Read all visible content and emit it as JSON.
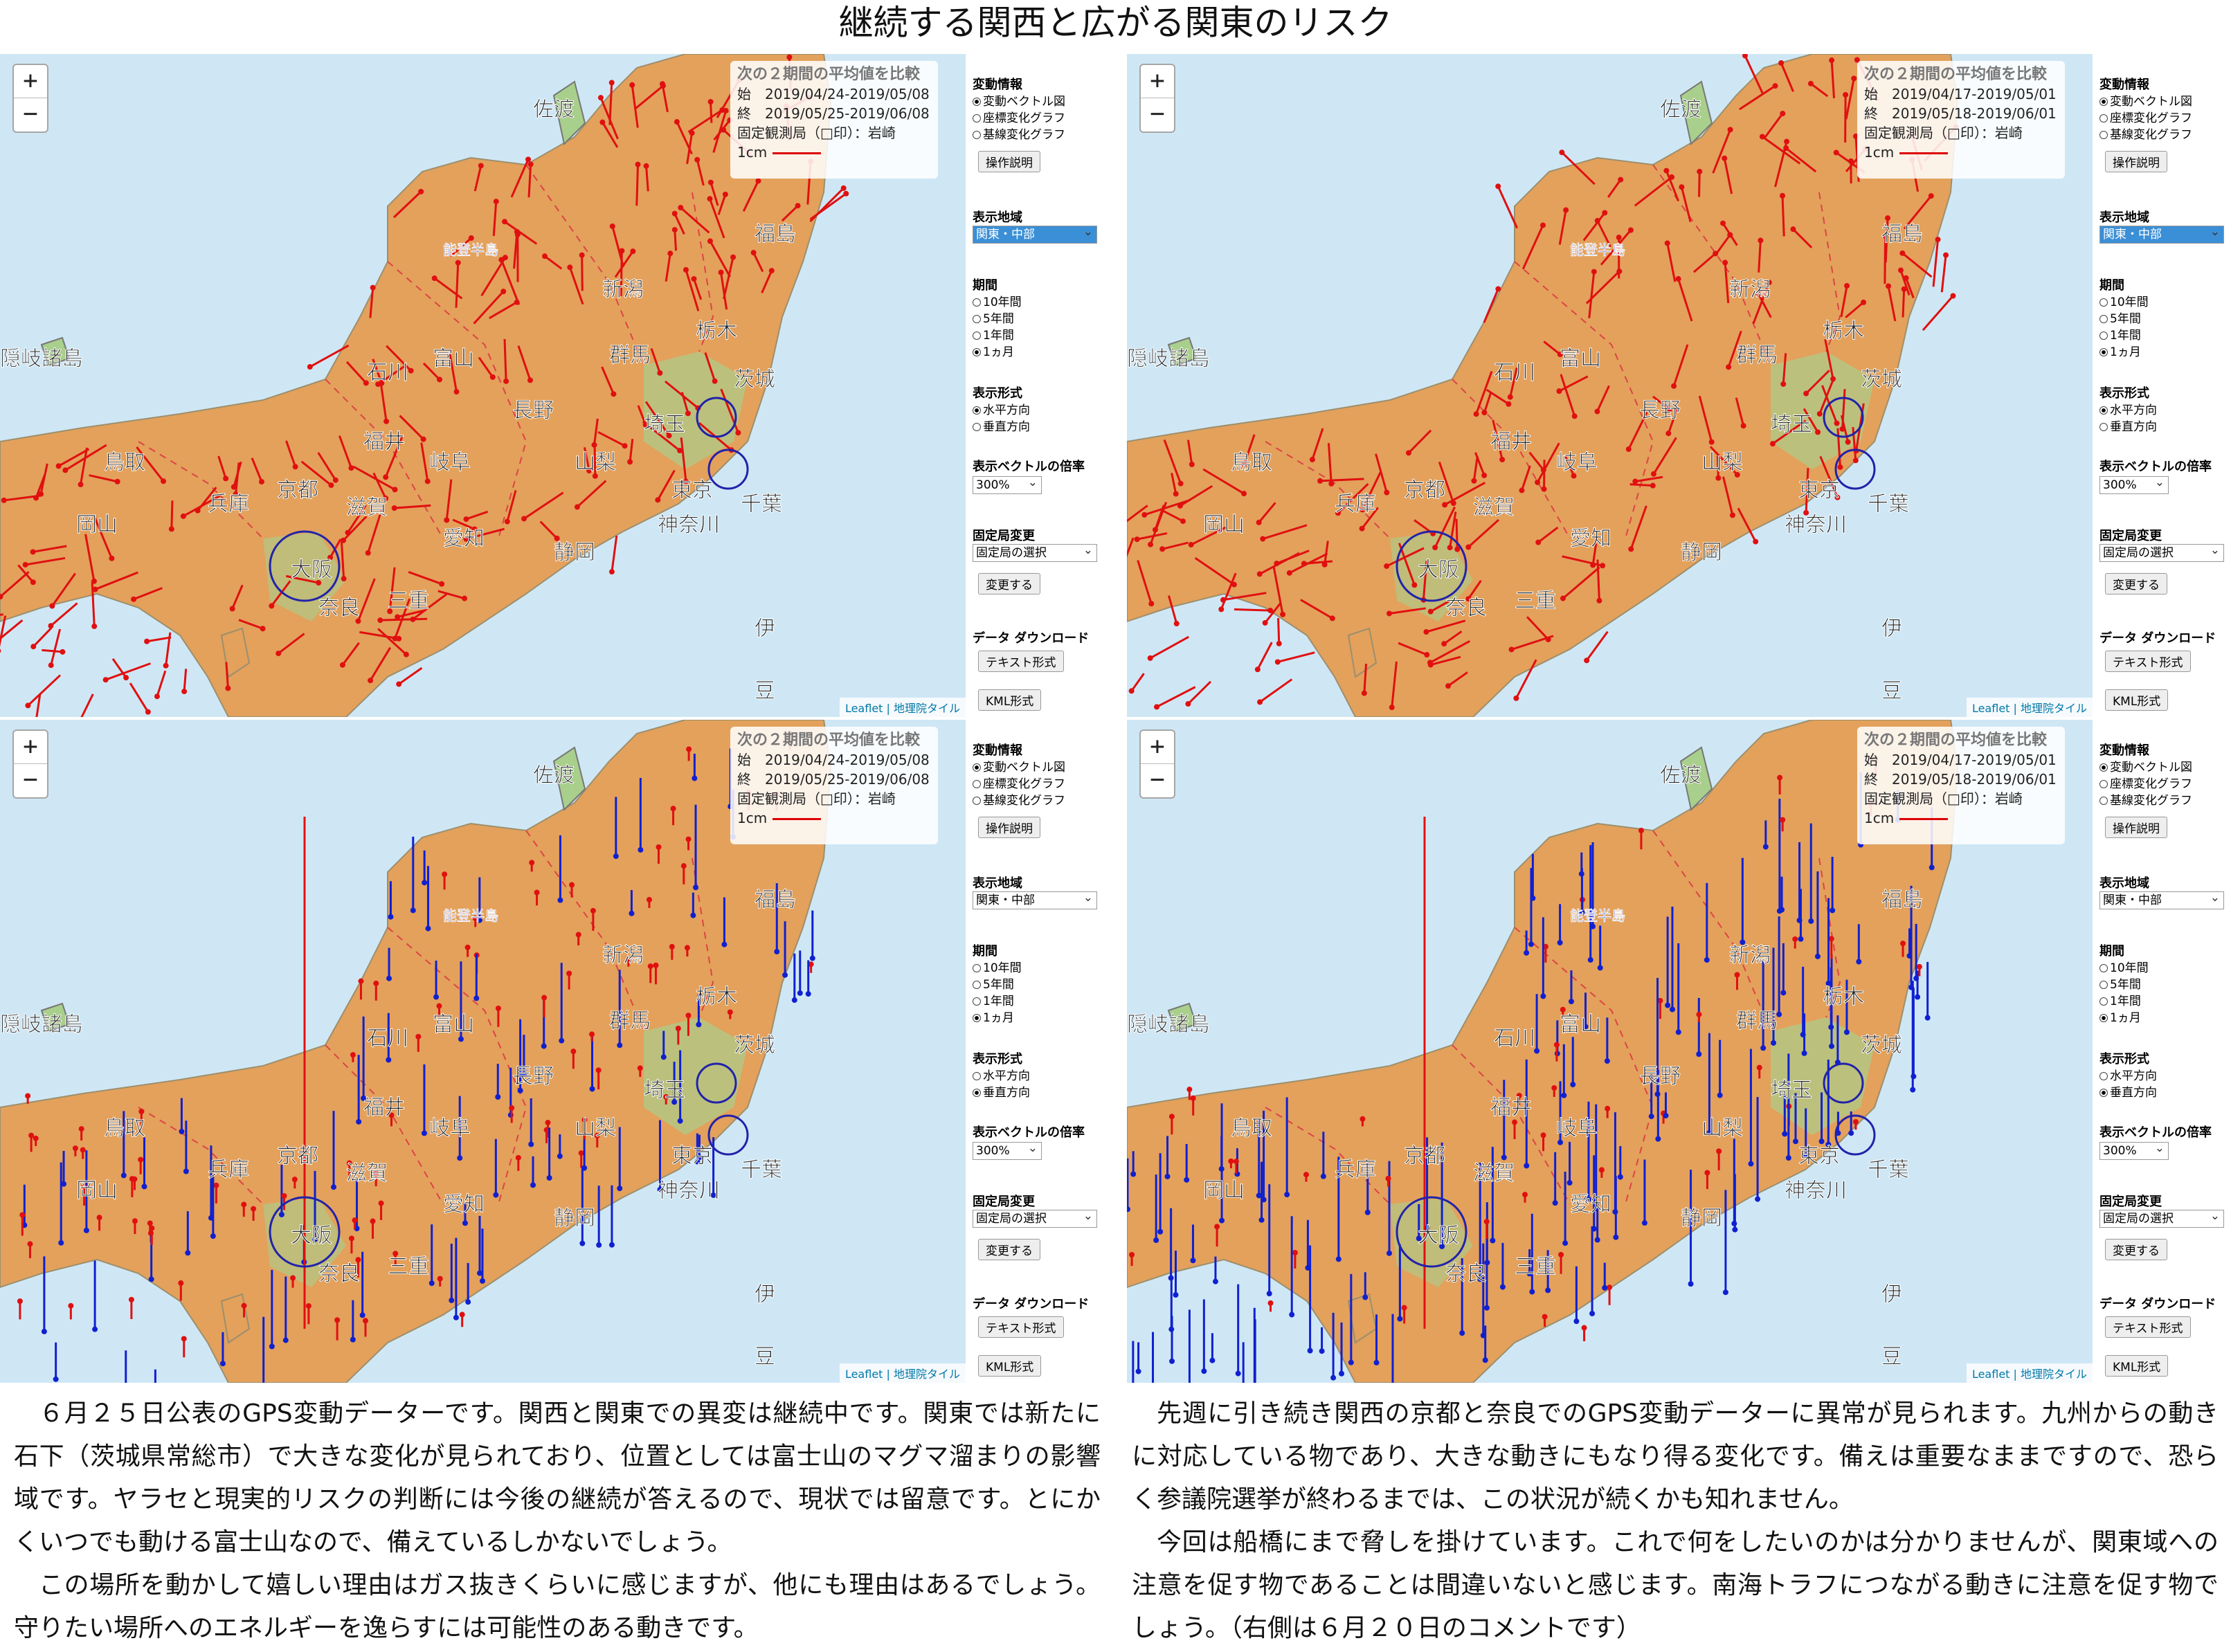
{
  "title": "継続する関西と広がる関東のリスク",
  "zoom": {
    "plus": "+",
    "minus": "−"
  },
  "attribution": "Leaflet | 地理院タイル",
  "sidebar": {
    "change_info": "変動情報",
    "opt_vector": "変動ベクトル図",
    "opt_coord": "座標変化グラフ",
    "opt_baseline": "基線変化グラフ",
    "howto_button": "操作説明",
    "region_label": "表示地域",
    "region_value": "関東・中部",
    "period_label": "期間",
    "period_10y": "10年間",
    "period_5y": "5年間",
    "period_1y": "1年間",
    "period_1m": "1ヵ月",
    "format_label": "表示形式",
    "format_h": "水平方向",
    "format_v": "垂直方向",
    "scale_label": "表示ベクトルの倍率",
    "scale_value": "300%",
    "fixed_label": "固定局変更",
    "fixed_value": "固定局の選択",
    "change_button": "変更する",
    "download_label": "データ ダウンロード",
    "text_button": "テキスト形式",
    "kml_button": "KML形式"
  },
  "info_header": "次の２期間の平均値を比較",
  "info_start_label": "始",
  "info_end_label": "終",
  "info_fixed": "固定観測局（□印）：岩崎",
  "info_scale": "1cm",
  "panels": {
    "tl": {
      "start": "2019/04/24-2019/05/08",
      "end": "2019/05/25-2019/06/08",
      "mode": "h"
    },
    "tr": {
      "start": "2019/04/17-2019/05/01",
      "end": "2019/05/18-2019/06/01",
      "mode": "h"
    },
    "bl": {
      "start": "2019/04/24-2019/05/08",
      "end": "2019/05/25-2019/06/08",
      "mode": "v"
    },
    "br": {
      "start": "2019/04/17-2019/05/01",
      "end": "2019/05/18-2019/06/01",
      "mode": "v"
    }
  },
  "map_labels": {
    "ishikawa": "石川",
    "fukui": "福井",
    "toyama": "富山",
    "nagano": "長野",
    "gifu": "岐阜",
    "aichi": "愛知",
    "shiga": "滋賀",
    "kyoto": "京都",
    "hyogo": "兵庫",
    "okayama": "岡山",
    "tottori": "鳥取",
    "osaka": "大阪",
    "nara": "奈良",
    "mie": "三重",
    "yamanashi": "山梨",
    "shizuoka": "静岡",
    "kanagawa": "神奈川",
    "saitama": "埼玉",
    "tokyo": "東京",
    "chiba": "千葉",
    "ibaraki": "茨城",
    "tochigi": "栃木",
    "gunma": "群馬",
    "niigata": "新潟",
    "fukushima": "福島",
    "sado": "佐渡",
    "izu": "伊",
    "izu2": "豆",
    "oki": "隠岐諸島",
    "noto": "能登半島"
  },
  "caption_left": [
    "６月２５日公表のGPS変動データーです。関西と関東での異変は継続中です。関東では新たに石下（茨城県常総市）で大きな変化が見られており、位置としては富士山のマグマ溜まりの影響域です。ヤラセと現実的リスクの判断には今後の継続が答えるので、現状では留意です。とにかくいつでも動ける富士山なので、備えているしかないでしょう。",
    "この場所を動かして嬉しい理由はガス抜きくらいに感じますが、他にも理由はあるでしょう。守りたい場所へのエネルギーを逸らすには可能性のある動きです。"
  ],
  "caption_right": [
    "先週に引き続き関西の京都と奈良でのGPS変動データーに異常が見られます。九州からの動きに対応している物であり、大きな動きにもなり得る変化です。備えは重要なままですので、恐らく参議院選挙が終わるまでは、この状況が続くかも知れません。",
    "今回は船橋にまで脅しを掛けています。これで何をしたいのかは分かりませんが、関東域への注意を促す物であることは間違いないと感じます。南海トラフにつながる動きに注意を促す物でしょう。（右側は６月２０日のコメントです）"
  ]
}
